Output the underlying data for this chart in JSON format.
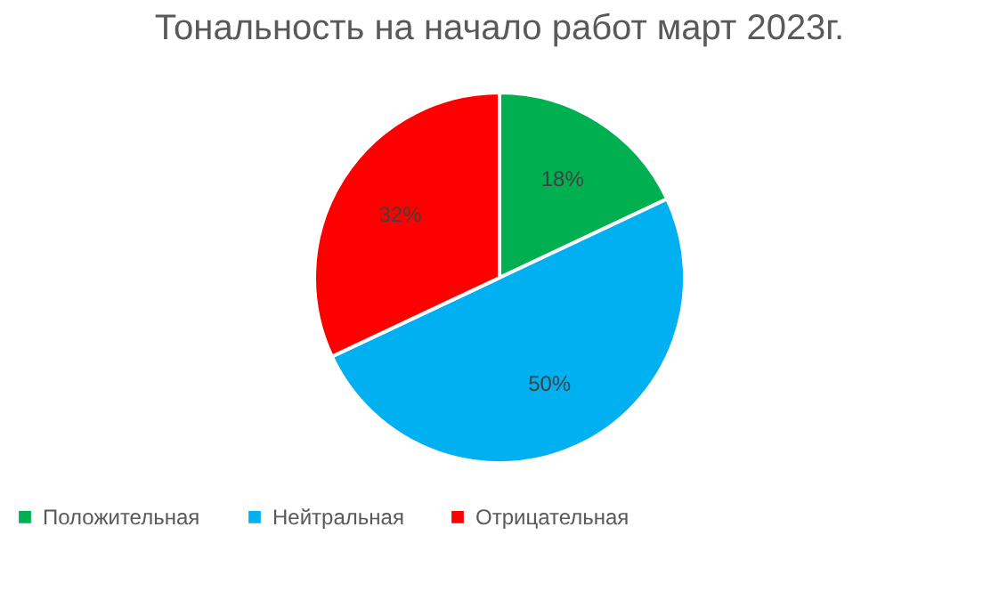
{
  "chart_data": {
    "type": "pie",
    "title": "Тональность на начало работ март 2023г.",
    "categories": [
      "Положительная",
      "Нейтральная",
      "Отрицательная"
    ],
    "values": [
      18,
      50,
      32
    ],
    "colors": [
      "#00b050",
      "#00b0f0",
      "#ff0000"
    ],
    "value_labels": [
      "18%",
      "50%",
      "32%"
    ],
    "legend": "bottom"
  }
}
